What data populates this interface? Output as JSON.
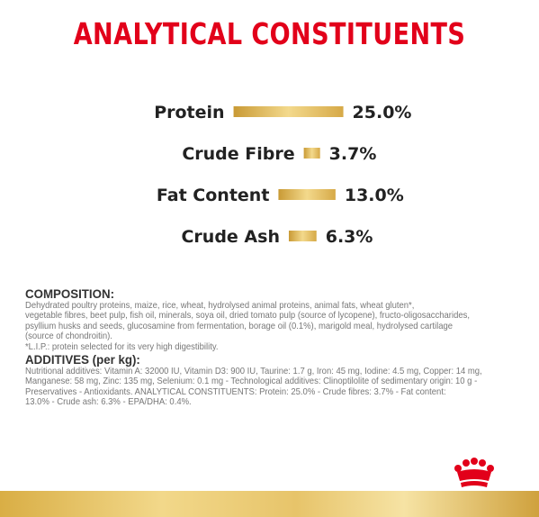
{
  "title": "ANALYTICAL CONSTITUENTS",
  "colors": {
    "title": "#e2001a",
    "bar": "#d9ae45",
    "text": "#222222",
    "crown": "#e2001a"
  },
  "chart_data": {
    "type": "bar",
    "orientation": "horizontal",
    "categories": [
      "Protein",
      "Crude Fibre",
      "Fat Content",
      "Crude Ash"
    ],
    "values": [
      25.0,
      3.7,
      13.0,
      6.3
    ],
    "value_labels": [
      "25.0%",
      "3.7%",
      "13.0%",
      "6.3%"
    ],
    "unit": "%",
    "xlim": [
      0,
      25
    ],
    "grid": false
  },
  "composition": {
    "heading": "COMPOSITION:",
    "lines": [
      "Dehydrated poultry proteins, maize, rice, wheat, hydrolysed animal proteins, animal fats, wheat gluten*,",
      "vegetable fibres, beet pulp, fish oil, minerals, soya oil, dried tomato pulp (source of lycopene), fructo-oligosaccharides,",
      "psyllium husks and seeds, glucosamine from fermentation, borage oil (0.1%), marigold meal, hydrolysed cartilage",
      "(source of chondroitin).",
      "*L.I.P.: protein selected for its very high digestibility."
    ]
  },
  "additives": {
    "heading": "ADDITIVES (per kg):",
    "lines": [
      "Nutritional additives: Vitamin A: 32000 IU, Vitamin D3: 900 IU, Taurine: 1.7 g, Iron: 45 mg, Iodine: 4.5 mg, Copper: 14 mg,",
      "Manganese: 58 mg, Zinc: 135 mg, Selenium: 0.1 mg - Technological additives: Clinoptilolite of sedimentary origin: 10 g -",
      "Preservatives - Antioxidants. ANALYTICAL CONSTITUENTS: Protein: 25.0% - Crude fibres: 3.7% - Fat content:",
      "13.0% - Crude ash: 6.3% - EPA/DHA: 0.4%."
    ]
  },
  "logo": "crown-icon"
}
